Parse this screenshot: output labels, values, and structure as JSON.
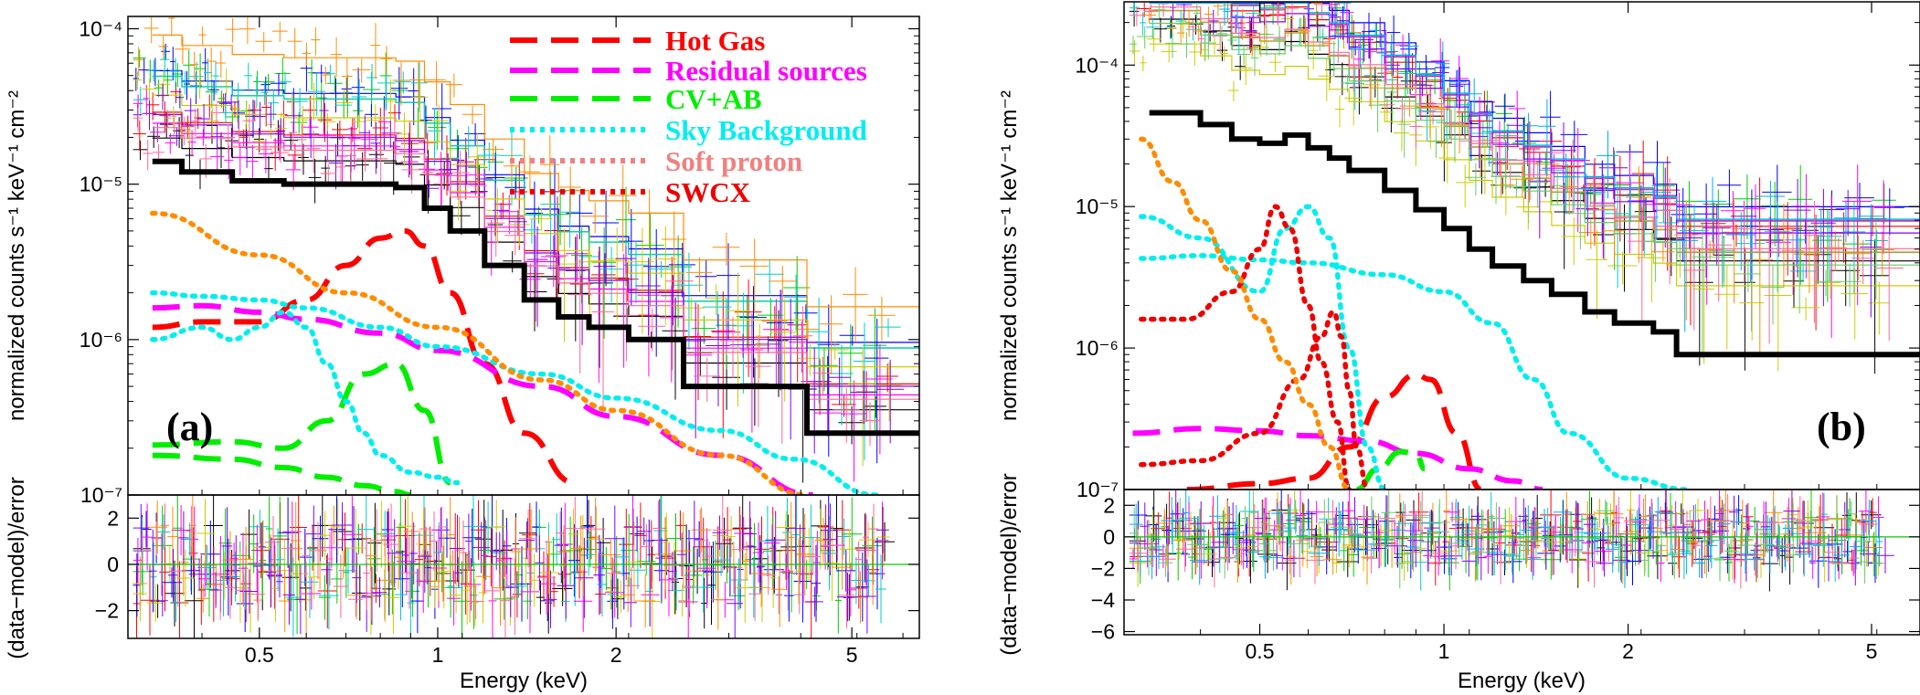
{
  "figure": {
    "colors": {
      "hot_gas": "#ff0000",
      "residual_sources": "#ff00ff",
      "cv_ab": "#00ee00",
      "sky_background": "#00eeee",
      "soft_proton": "#f08080",
      "swcx": "#ee0000",
      "soft_proton_curve": "#ff8c00",
      "model_total": "#000000"
    },
    "legend": [
      {
        "label": "Hot Gas",
        "style": "dashed",
        "color": "#ff0000"
      },
      {
        "label": "Residual sources",
        "style": "dashed",
        "color": "#ff00ff"
      },
      {
        "label": "CV+AB",
        "style": "dashed",
        "color": "#00ee00"
      },
      {
        "label": "Sky Background",
        "style": "dotted",
        "color": "#00eeee"
      },
      {
        "label": "Soft proton",
        "style": "dotted",
        "color": "#f08080"
      },
      {
        "label": "SWCX",
        "style": "dotted",
        "color": "#ee0000"
      }
    ]
  },
  "chart_data": [
    {
      "type": "line",
      "panel": "(a)",
      "xlabel": "Energy (keV)",
      "ylabel": "normalized counts s⁻¹ keV⁻¹ cm⁻²",
      "xscale": "log",
      "yscale": "log",
      "xlim": [
        0.3,
        6.5
      ],
      "ylim": [
        1e-07,
        0.00012
      ],
      "xticks": [
        0.5,
        1,
        2,
        5
      ],
      "xtick_labels": [
        "0.5",
        "1",
        "2",
        "5"
      ],
      "yticks": [
        1e-07,
        1e-06,
        1e-05,
        0.0001
      ],
      "ytick_labels": [
        "10⁻⁷",
        "10⁻⁶",
        "10⁻⁵",
        "10⁻⁴"
      ],
      "series": [
        {
          "name": "Total model",
          "color": "#000000",
          "style": "step",
          "x": [
            0.33,
            0.37,
            0.45,
            0.55,
            0.65,
            0.75,
            0.85,
            0.95,
            1.05,
            1.2,
            1.4,
            1.6,
            1.8,
            2.1,
            2.6,
            4.2,
            6.5
          ],
          "y": [
            1.4e-05,
            1.2e-05,
            1.05e-05,
            1e-05,
            1e-05,
            1e-05,
            9.5e-06,
            7e-06,
            5e-06,
            3e-06,
            1.8e-06,
            1.4e-06,
            1.2e-06,
            1e-06,
            5e-07,
            2.5e-07,
            2.5e-07
          ]
        },
        {
          "name": "Hot Gas",
          "color": "#ff0000",
          "style": "dashed",
          "x": [
            0.33,
            0.4,
            0.5,
            0.6,
            0.7,
            0.8,
            0.88,
            0.95,
            1.05,
            1.2,
            1.4,
            1.7
          ],
          "y": [
            1.2e-06,
            1.3e-06,
            1.3e-06,
            1.8e-06,
            3e-06,
            4.5e-06,
            5e-06,
            4e-06,
            2e-06,
            7e-07,
            2.5e-07,
            1.2e-07
          ]
        },
        {
          "name": "Residual sources",
          "color": "#ff00ff",
          "style": "dashed",
          "x": [
            0.33,
            0.4,
            0.5,
            0.6,
            0.8,
            1.0,
            1.5,
            2.0,
            3.0,
            4.3
          ],
          "y": [
            1.6e-06,
            1.65e-06,
            1.5e-06,
            1.35e-06,
            1.1e-06,
            8.5e-07,
            5e-07,
            3.2e-07,
            1.8e-07,
            1e-07
          ]
        },
        {
          "name": "CV+AB",
          "color": "#00ee00",
          "style": "dashed",
          "x": [
            0.33,
            0.45,
            0.55,
            0.65,
            0.75,
            0.85,
            0.95,
            1.05
          ],
          "y": [
            2.1e-07,
            2.2e-07,
            2e-07,
            3e-07,
            6e-07,
            7e-07,
            3.5e-07,
            1.2e-07
          ]
        },
        {
          "name": "CV+AB (lower)",
          "color": "#00ee00",
          "style": "dashed",
          "x": [
            0.33,
            0.45,
            0.55,
            0.65,
            0.75,
            0.85,
            0.9
          ],
          "y": [
            1.8e-07,
            1.7e-07,
            1.5e-07,
            1.3e-07,
            1.15e-07,
            1.05e-07,
            1e-07
          ]
        },
        {
          "name": "Sky Background",
          "color": "#00eeee",
          "style": "dotted",
          "x": [
            0.33,
            0.4,
            0.45,
            0.5,
            0.55,
            0.6,
            0.65,
            0.7,
            0.75,
            0.8,
            0.9,
            1.0,
            1.08
          ],
          "y": [
            1e-06,
            1.2e-06,
            1e-06,
            1.2e-06,
            1.5e-06,
            1.2e-06,
            7e-07,
            4e-07,
            2.5e-07,
            1.8e-07,
            1.4e-07,
            1.3e-07,
            1.2e-07
          ]
        },
        {
          "name": "Sky Background (broad)",
          "color": "#00eeee",
          "style": "dotted",
          "x": [
            0.33,
            0.4,
            0.5,
            0.6,
            0.8,
            1.0,
            1.5,
            2.0,
            3.0,
            4.0,
            5.5
          ],
          "y": [
            2e-06,
            1.9e-06,
            1.8e-06,
            1.6e-06,
            1.2e-06,
            9e-07,
            6e-07,
            4.2e-07,
            2.6e-07,
            1.7e-07,
            1e-07
          ]
        },
        {
          "name": "Soft proton (model)",
          "color": "#ff8c00",
          "style": "dotted",
          "x": [
            0.33,
            0.5,
            0.7,
            1.0,
            1.5,
            2.0,
            3.0,
            4.2
          ],
          "y": [
            6.5e-06,
            3.5e-06,
            2e-06,
            1.2e-06,
            5.5e-07,
            3.5e-07,
            1.8e-07,
            1e-07
          ]
        }
      ],
      "residuals": {
        "ylabel": "(data−model)/error",
        "ylim": [
          -3.2,
          3
        ],
        "yticks": [
          -2,
          0,
          2
        ],
        "ytick_labels": [
          "−2",
          "0",
          "2"
        ]
      }
    },
    {
      "type": "line",
      "panel": "(b)",
      "xlabel": "Energy (keV)",
      "ylabel": "normalized counts s⁻¹ keV⁻¹ cm⁻²",
      "xscale": "log",
      "yscale": "log",
      "xlim": [
        0.3,
        6.0
      ],
      "ylim": [
        1e-07,
        0.00028
      ],
      "xticks": [
        0.5,
        1,
        2,
        5
      ],
      "xtick_labels": [
        "0.5",
        "1",
        "2",
        "5"
      ],
      "yticks": [
        1e-07,
        1e-06,
        1e-05,
        0.0001
      ],
      "ytick_labels": [
        "10⁻⁷",
        "10⁻⁶",
        "10⁻⁵",
        "10⁻⁴"
      ],
      "series": [
        {
          "name": "Total model",
          "color": "#000000",
          "style": "step",
          "x": [
            0.33,
            0.4,
            0.45,
            0.5,
            0.55,
            0.6,
            0.65,
            0.7,
            0.8,
            0.9,
            1.0,
            1.1,
            1.2,
            1.35,
            1.5,
            1.7,
            1.9,
            2.2,
            2.4,
            3.5
          ],
          "y": [
            4.6e-05,
            3.8e-05,
            3e-05,
            2.8e-05,
            3.2e-05,
            2.6e-05,
            2.2e-05,
            1.8e-05,
            1.3e-05,
            9.5e-06,
            7e-06,
            5e-06,
            3.8e-06,
            3e-06,
            2.4e-06,
            1.8e-06,
            1.5e-06,
            1.3e-06,
            9e-07,
            9e-07
          ]
        },
        {
          "name": "Hot Gas",
          "color": "#ff0000",
          "style": "dashed",
          "x": [
            0.38,
            0.5,
            0.6,
            0.7,
            0.8,
            0.9,
            0.95,
            1.05,
            1.15
          ],
          "y": [
            1e-07,
            1.1e-07,
            1.2e-07,
            2e-07,
            4.5e-07,
            6.5e-07,
            6e-07,
            2.5e-07,
            1e-07
          ]
        },
        {
          "name": "Residual sources",
          "color": "#ff00ff",
          "style": "dashed",
          "x": [
            0.31,
            0.4,
            0.5,
            0.6,
            0.75,
            0.9,
            1.1,
            1.3,
            1.45
          ],
          "y": [
            2.5e-07,
            2.7e-07,
            2.6e-07,
            2.4e-07,
            2.2e-07,
            1.8e-07,
            1.4e-07,
            1.15e-07,
            1e-07
          ]
        },
        {
          "name": "CV+AB",
          "color": "#00ee00",
          "style": "dashed",
          "x": [
            0.72,
            0.78,
            0.85,
            0.9,
            0.93
          ],
          "y": [
            1e-07,
            1.4e-07,
            1.85e-07,
            1.8e-07,
            1.4e-07
          ]
        },
        {
          "name": "Sky Background",
          "color": "#00eeee",
          "style": "dotted",
          "x": [
            0.32,
            0.4,
            0.5,
            0.55,
            0.6,
            0.65,
            0.7,
            0.75,
            0.8
          ],
          "y": [
            8.5e-06,
            6e-06,
            2.5e-06,
            7e-06,
            1e-05,
            6e-06,
            1e-06,
            2e-07,
            1e-07
          ]
        },
        {
          "name": "Sky Background (broad)",
          "color": "#00eeee",
          "style": "dotted",
          "x": [
            0.32,
            0.4,
            0.5,
            0.6,
            0.8,
            1.0,
            1.2,
            1.4,
            1.6,
            2.0,
            2.5
          ],
          "y": [
            4.3e-06,
            4.5e-06,
            4.2e-06,
            4e-06,
            3.3e-06,
            2.5e-06,
            1.5e-06,
            6e-07,
            2.5e-07,
            1.2e-07,
            1e-07
          ]
        },
        {
          "name": "SWCX",
          "color": "#ee0000",
          "style": "dotted",
          "x": [
            0.32,
            0.38,
            0.45,
            0.5,
            0.53,
            0.56,
            0.6,
            0.63,
            0.67,
            0.7
          ],
          "y": [
            1.6e-06,
            1.6e-06,
            2.5e-06,
            5e-06,
            1e-05,
            7e-06,
            2e-06,
            8e-07,
            3e-07,
            1e-07
          ]
        },
        {
          "name": "SWCX (lines)",
          "color": "#ee0000",
          "style": "dotted",
          "x": [
            0.32,
            0.4,
            0.5,
            0.58,
            0.63,
            0.66,
            0.68,
            0.7,
            0.72,
            0.75
          ],
          "y": [
            1.5e-07,
            1.6e-07,
            2.5e-07,
            6e-07,
            1.2e-06,
            1.8e-06,
            1.2e-06,
            5e-07,
            2e-07,
            1e-07
          ]
        },
        {
          "name": "Soft proton (model)",
          "color": "#ff8c00",
          "style": "dotted",
          "x": [
            0.32,
            0.36,
            0.4,
            0.45,
            0.5,
            0.55,
            0.6,
            0.65,
            0.7
          ],
          "y": [
            3e-05,
            1.5e-05,
            8e-06,
            3.5e-06,
            1.6e-06,
            8e-07,
            4e-07,
            2e-07,
            1e-07
          ]
        }
      ],
      "residuals": {
        "ylabel": "(data−model)/error",
        "ylim": [
          -6.2,
          3
        ],
        "yticks": [
          -6,
          -4,
          -2,
          0,
          2
        ],
        "ytick_labels": [
          "−6",
          "−4",
          "−2",
          "0",
          "2"
        ]
      }
    }
  ]
}
